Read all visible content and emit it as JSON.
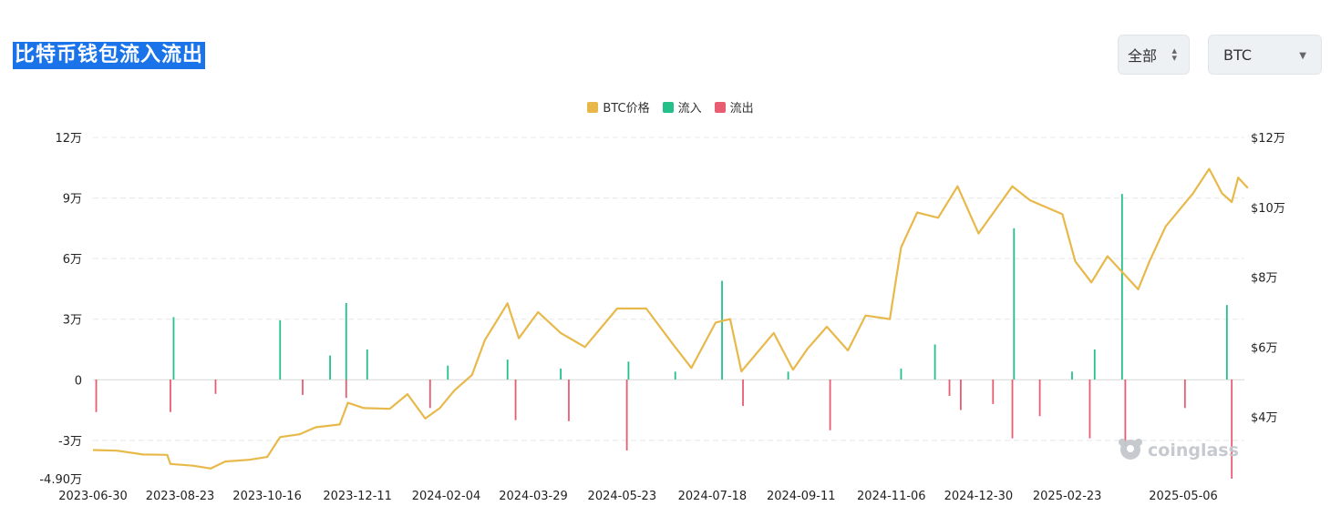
{
  "header": {
    "title": "比特币钱包流入流出",
    "range_select": {
      "value": "全部",
      "icon": "up-down-arrows-icon"
    },
    "coin_select": {
      "value": "BTC",
      "icon": "caret-down-icon"
    }
  },
  "watermark": {
    "text": "coinglass",
    "icon": "coinglass-logo-icon"
  },
  "chart_data": {
    "type": "bar+line",
    "legend": [
      {
        "name": "BTC价格",
        "color": "#e8b94a"
      },
      {
        "name": "流入",
        "color": "#25c08a"
      },
      {
        "name": "流出",
        "color": "#e95d72"
      }
    ],
    "x_labels": [
      "2023-06-30",
      "2023-08-23",
      "2023-10-16",
      "2023-12-11",
      "2024-02-04",
      "2024-03-29",
      "2024-05-23",
      "2024-07-18",
      "2024-09-11",
      "2024-11-06",
      "2024-12-30",
      "2025-02-23",
      "2025-05-06"
    ],
    "x_start": "2023-06-30",
    "x_end": "2025-06-10",
    "y_left": {
      "min": -49000,
      "max": 120000,
      "ticks": [
        120000,
        90000,
        60000,
        30000,
        0,
        -30000,
        -49000
      ],
      "tick_labels": [
        "12万",
        "9万",
        "6万",
        "3万",
        "0",
        "-3万",
        "-4.90万"
      ]
    },
    "y_right": {
      "min": 25000,
      "max": 120000,
      "ticks": [
        120000,
        100000,
        80000,
        60000,
        40000
      ],
      "tick_labels": [
        "$12万",
        "$10万",
        "$8万",
        "$6万",
        "$4万"
      ]
    },
    "grid": true,
    "price_series": {
      "name": "BTC价格",
      "points": [
        [
          "2023-06-30",
          30500
        ],
        [
          "2023-07-15",
          30300
        ],
        [
          "2023-07-31",
          29200
        ],
        [
          "2023-08-15",
          29100
        ],
        [
          "2023-08-17",
          26500
        ],
        [
          "2023-08-31",
          26000
        ],
        [
          "2023-09-11",
          25200
        ],
        [
          "2023-09-20",
          27200
        ],
        [
          "2023-10-05",
          27700
        ],
        [
          "2023-10-16",
          28500
        ],
        [
          "2023-10-24",
          34200
        ],
        [
          "2023-11-05",
          35000
        ],
        [
          "2023-11-15",
          37000
        ],
        [
          "2023-11-30",
          37800
        ],
        [
          "2023-12-05",
          44000
        ],
        [
          "2023-12-15",
          42500
        ],
        [
          "2023-12-31",
          42300
        ],
        [
          "2024-01-11",
          46500
        ],
        [
          "2024-01-22",
          39500
        ],
        [
          "2024-01-31",
          42500
        ],
        [
          "2024-02-09",
          47500
        ],
        [
          "2024-02-20",
          52000
        ],
        [
          "2024-02-28",
          62000
        ],
        [
          "2024-03-05",
          66500
        ],
        [
          "2024-03-13",
          72500
        ],
        [
          "2024-03-20",
          62500
        ],
        [
          "2024-04-01",
          70000
        ],
        [
          "2024-04-15",
          64000
        ],
        [
          "2024-04-30",
          60000
        ],
        [
          "2024-05-20",
          71000
        ],
        [
          "2024-06-07",
          71000
        ],
        [
          "2024-06-24",
          60500
        ],
        [
          "2024-07-05",
          54000
        ],
        [
          "2024-07-20",
          67000
        ],
        [
          "2024-07-29",
          68000
        ],
        [
          "2024-08-05",
          53000
        ],
        [
          "2024-08-25",
          64000
        ],
        [
          "2024-09-06",
          53500
        ],
        [
          "2024-09-15",
          59500
        ],
        [
          "2024-09-27",
          65800
        ],
        [
          "2024-10-10",
          59000
        ],
        [
          "2024-10-21",
          69000
        ],
        [
          "2024-11-05",
          68000
        ],
        [
          "2024-11-12",
          88500
        ],
        [
          "2024-11-22",
          98500
        ],
        [
          "2024-12-05",
          97000
        ],
        [
          "2024-12-17",
          106000
        ],
        [
          "2024-12-30",
          92500
        ],
        [
          "2025-01-20",
          106000
        ],
        [
          "2025-01-31",
          102000
        ],
        [
          "2025-02-20",
          98000
        ],
        [
          "2025-02-28",
          84500
        ],
        [
          "2025-03-10",
          78500
        ],
        [
          "2025-03-20",
          86000
        ],
        [
          "2025-04-08",
          76500
        ],
        [
          "2025-04-15",
          84500
        ],
        [
          "2025-04-25",
          94500
        ],
        [
          "2025-05-12",
          104000
        ],
        [
          "2025-05-22",
          111000
        ],
        [
          "2025-05-30",
          104000
        ],
        [
          "2025-06-05",
          101500
        ],
        [
          "2025-06-09",
          108500
        ],
        [
          "2025-06-15",
          105500
        ]
      ]
    },
    "inflow_series": {
      "name": "流入",
      "points": [
        [
          "2023-08-19",
          31000
        ],
        [
          "2023-10-24",
          29500
        ],
        [
          "2023-11-24",
          12000
        ],
        [
          "2023-12-04",
          38000
        ],
        [
          "2023-12-17",
          15000
        ],
        [
          "2024-02-05",
          7000
        ],
        [
          "2024-03-13",
          10000
        ],
        [
          "2024-04-15",
          5500
        ],
        [
          "2024-05-27",
          9000
        ],
        [
          "2024-06-25",
          4000
        ],
        [
          "2024-07-24",
          49000
        ],
        [
          "2024-09-03",
          4000
        ],
        [
          "2024-11-12",
          5500
        ],
        [
          "2024-12-03",
          17500
        ],
        [
          "2025-01-21",
          75000
        ],
        [
          "2025-02-26",
          4000
        ],
        [
          "2025-03-12",
          15000
        ],
        [
          "2025-03-29",
          92000
        ],
        [
          "2025-06-02",
          37000
        ]
      ]
    },
    "outflow_series": {
      "name": "流出",
      "points": [
        [
          "2023-07-02",
          -16000
        ],
        [
          "2023-08-17",
          -16000
        ],
        [
          "2023-09-14",
          -7000
        ],
        [
          "2023-11-07",
          -7500
        ],
        [
          "2023-12-04",
          -9000
        ],
        [
          "2024-01-25",
          -14000
        ],
        [
          "2024-03-18",
          -20000
        ],
        [
          "2024-04-20",
          -20500
        ],
        [
          "2024-05-26",
          -35000
        ],
        [
          "2024-08-06",
          -13000
        ],
        [
          "2024-09-29",
          -25000
        ],
        [
          "2024-12-12",
          -8000
        ],
        [
          "2024-12-19",
          -15000
        ],
        [
          "2025-01-08",
          -12000
        ],
        [
          "2025-01-20",
          -29000
        ],
        [
          "2025-02-06",
          -18000
        ],
        [
          "2025-03-09",
          -29000
        ],
        [
          "2025-03-31",
          -33000
        ],
        [
          "2025-05-07",
          -14000
        ],
        [
          "2025-06-05",
          -49000
        ]
      ]
    }
  }
}
